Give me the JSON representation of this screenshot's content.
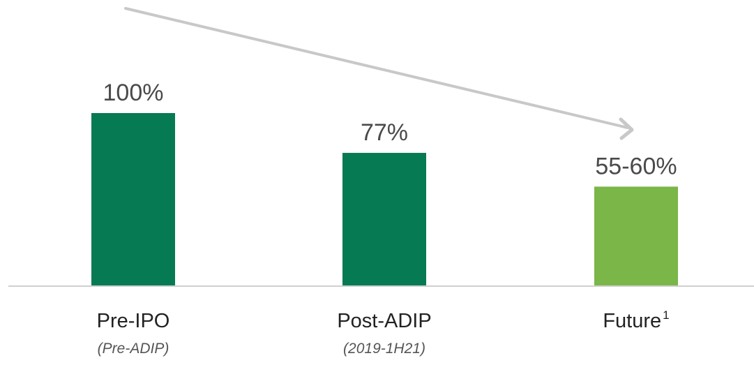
{
  "chart_data": {
    "type": "bar",
    "categories": [
      "Pre-IPO",
      "Post-ADIP",
      "Future"
    ],
    "category_superscripts": [
      "",
      "",
      "1"
    ],
    "subtitles": [
      "(Pre-ADIP)",
      "(2019-1H21)",
      ""
    ],
    "values": [
      100,
      77,
      57.5
    ],
    "value_labels": [
      "100%",
      "77%",
      "55-60%"
    ],
    "bar_colors": [
      "#067a52",
      "#067a52",
      "#7ab648"
    ],
    "trend_arrow_color": "#c8c8c8",
    "baseline_color": "#cfcfcf",
    "ylim": [
      0,
      100
    ],
    "grid": false,
    "title": "",
    "xlabel": "",
    "ylabel": ""
  }
}
